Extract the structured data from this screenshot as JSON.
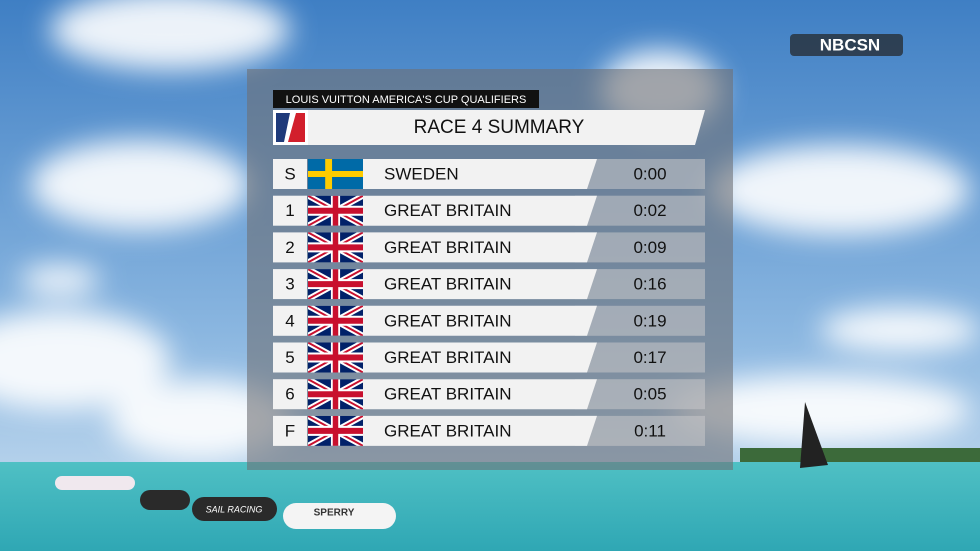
{
  "network_logo": "NBCSN",
  "graphic": {
    "series": "LOUIS VUITTON AMERICA'S CUP QUALIFIERS",
    "title": "RACE 4 SUMMARY",
    "rows": [
      {
        "mark": "S",
        "team": "SWEDEN",
        "time": "0:00"
      },
      {
        "mark": "1",
        "team": "GREAT BRITAIN",
        "time": "0:02"
      },
      {
        "mark": "2",
        "team": "GREAT BRITAIN",
        "time": "0:09"
      },
      {
        "mark": "3",
        "team": "GREAT BRITAIN",
        "time": "0:16"
      },
      {
        "mark": "4",
        "team": "GREAT BRITAIN",
        "time": "0:19"
      },
      {
        "mark": "5",
        "team": "GREAT BRITAIN",
        "time": "0:17"
      },
      {
        "mark": "6",
        "team": "GREAT BRITAIN",
        "time": "0:05"
      },
      {
        "mark": "F",
        "team": "GREAT BRITAIN",
        "time": "0:11"
      }
    ]
  },
  "buoys": [
    "SAIL RACING",
    "SPERRY"
  ]
}
